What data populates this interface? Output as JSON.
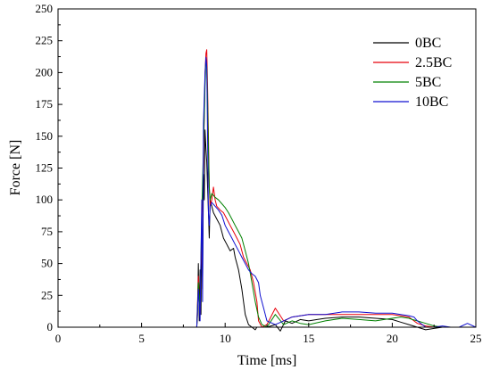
{
  "chart_data": {
    "type": "line",
    "title": "",
    "xlabel": "Time [ms]",
    "ylabel": "Force [N]",
    "xlim": [
      0,
      25
    ],
    "ylim": [
      0,
      250
    ],
    "xticks": [
      0,
      5,
      10,
      15,
      20,
      25
    ],
    "yticks": [
      0,
      25,
      50,
      75,
      100,
      125,
      150,
      175,
      200,
      225,
      250
    ],
    "grid": false,
    "legend_position": "top-right",
    "series": [
      {
        "name": "0BC",
        "color": "#000000",
        "x": [
          0,
          8.3,
          8.35,
          8.4,
          8.45,
          8.5,
          8.55,
          8.6,
          8.65,
          8.7,
          8.75,
          8.8,
          8.85,
          8.9,
          8.95,
          9.0,
          9.05,
          9.1,
          9.2,
          9.3,
          9.5,
          9.7,
          9.9,
          10.1,
          10.3,
          10.5,
          10.6,
          10.8,
          11.0,
          11.2,
          11.4,
          11.6,
          11.8,
          11.9,
          12.0,
          12.5,
          13.0,
          13.3,
          13.6,
          14.0,
          14.5,
          15.0,
          15.5,
          16.0,
          17.0,
          18.0,
          19.0,
          20.0,
          20.5,
          21.0,
          21.5,
          22.0,
          22.5,
          23.0,
          23.5,
          24.0,
          24.5,
          25.0
        ],
        "y": [
          0,
          0,
          10,
          50,
          5,
          45,
          10,
          80,
          30,
          120,
          100,
          155,
          140,
          130,
          110,
          90,
          70,
          100,
          95,
          90,
          85,
          80,
          70,
          65,
          60,
          62,
          55,
          45,
          30,
          10,
          2,
          0,
          -2,
          0,
          0,
          0,
          2,
          -3,
          5,
          3,
          6,
          5,
          6,
          7,
          8,
          8,
          7,
          6,
          4,
          2,
          0,
          -2,
          -1,
          0,
          0,
          0,
          0,
          0
        ]
      },
      {
        "name": "2.5BC",
        "color": "#e8000b",
        "x": [
          0,
          8.3,
          8.4,
          8.5,
          8.6,
          8.7,
          8.8,
          8.85,
          8.9,
          8.95,
          9.0,
          9.05,
          9.1,
          9.2,
          9.3,
          9.4,
          9.5,
          9.7,
          9.9,
          10.1,
          10.3,
          10.5,
          10.7,
          10.9,
          11.1,
          11.3,
          11.5,
          11.7,
          11.9,
          12.0,
          12.2,
          12.5,
          13.0,
          13.5,
          14.0,
          15.0,
          16.0,
          17.0,
          18.0,
          19.0,
          20.0,
          20.5,
          21.0,
          21.3,
          21.5,
          22.0,
          22.5,
          23.0,
          23.5,
          24.0,
          24.5,
          25.0
        ],
        "y": [
          0,
          0,
          40,
          10,
          80,
          130,
          200,
          215,
          218,
          190,
          150,
          110,
          95,
          100,
          110,
          100,
          95,
          92,
          90,
          85,
          80,
          75,
          70,
          65,
          55,
          50,
          45,
          35,
          20,
          5,
          0,
          2,
          15,
          5,
          8,
          10,
          10,
          10,
          10,
          10,
          10,
          9,
          8,
          5,
          3,
          1,
          0,
          0,
          0,
          0,
          0,
          0
        ]
      },
      {
        "name": "5BC",
        "color": "#008000",
        "x": [
          0,
          8.3,
          8.4,
          8.5,
          8.6,
          8.7,
          8.8,
          8.85,
          8.9,
          8.95,
          9.0,
          9.05,
          9.1,
          9.2,
          9.4,
          9.6,
          9.8,
          10.0,
          10.2,
          10.4,
          10.6,
          10.8,
          11.0,
          11.2,
          11.4,
          11.6,
          11.8,
          12.0,
          12.2,
          12.5,
          13.0,
          13.5,
          14.0,
          14.5,
          15.0,
          16.0,
          17.0,
          18.0,
          19.0,
          20.0,
          20.5,
          21.0,
          21.2,
          21.5,
          22.0,
          22.5,
          23.0,
          23.5,
          24.0,
          24.5,
          25.0
        ],
        "y": [
          0,
          0,
          35,
          15,
          90,
          140,
          190,
          210,
          205,
          180,
          140,
          110,
          100,
          105,
          102,
          100,
          97,
          94,
          90,
          85,
          80,
          75,
          70,
          60,
          50,
          35,
          20,
          8,
          2,
          0,
          10,
          2,
          5,
          3,
          2,
          5,
          7,
          6,
          5,
          7,
          8,
          7,
          6,
          5,
          3,
          1,
          0,
          0,
          0,
          0,
          0
        ]
      },
      {
        "name": "10BC",
        "color": "#1010d0",
        "x": [
          0,
          8.3,
          8.4,
          8.5,
          8.6,
          8.65,
          8.7,
          8.8,
          8.85,
          8.9,
          8.95,
          9.0,
          9.05,
          9.1,
          9.2,
          9.4,
          9.6,
          9.8,
          10.0,
          10.2,
          10.4,
          10.6,
          10.8,
          11.0,
          11.2,
          11.4,
          11.6,
          11.8,
          12.0,
          12.1,
          12.3,
          12.5,
          13.0,
          13.5,
          14.0,
          15.0,
          16.0,
          17.0,
          18.0,
          19.0,
          20.0,
          20.5,
          21.0,
          21.3,
          21.5,
          21.8,
          22.0,
          22.5,
          23.0,
          23.5,
          24.0,
          24.5,
          25.0
        ],
        "y": [
          0,
          0,
          30,
          5,
          100,
          20,
          160,
          200,
          212,
          205,
          150,
          90,
          80,
          95,
          98,
          95,
          92,
          88,
          80,
          75,
          70,
          65,
          60,
          55,
          50,
          45,
          42,
          40,
          35,
          25,
          15,
          5,
          2,
          5,
          8,
          10,
          10,
          12,
          12,
          11,
          11,
          10,
          9,
          8,
          5,
          2,
          0,
          0,
          1,
          0,
          0,
          3,
          0
        ]
      }
    ]
  }
}
